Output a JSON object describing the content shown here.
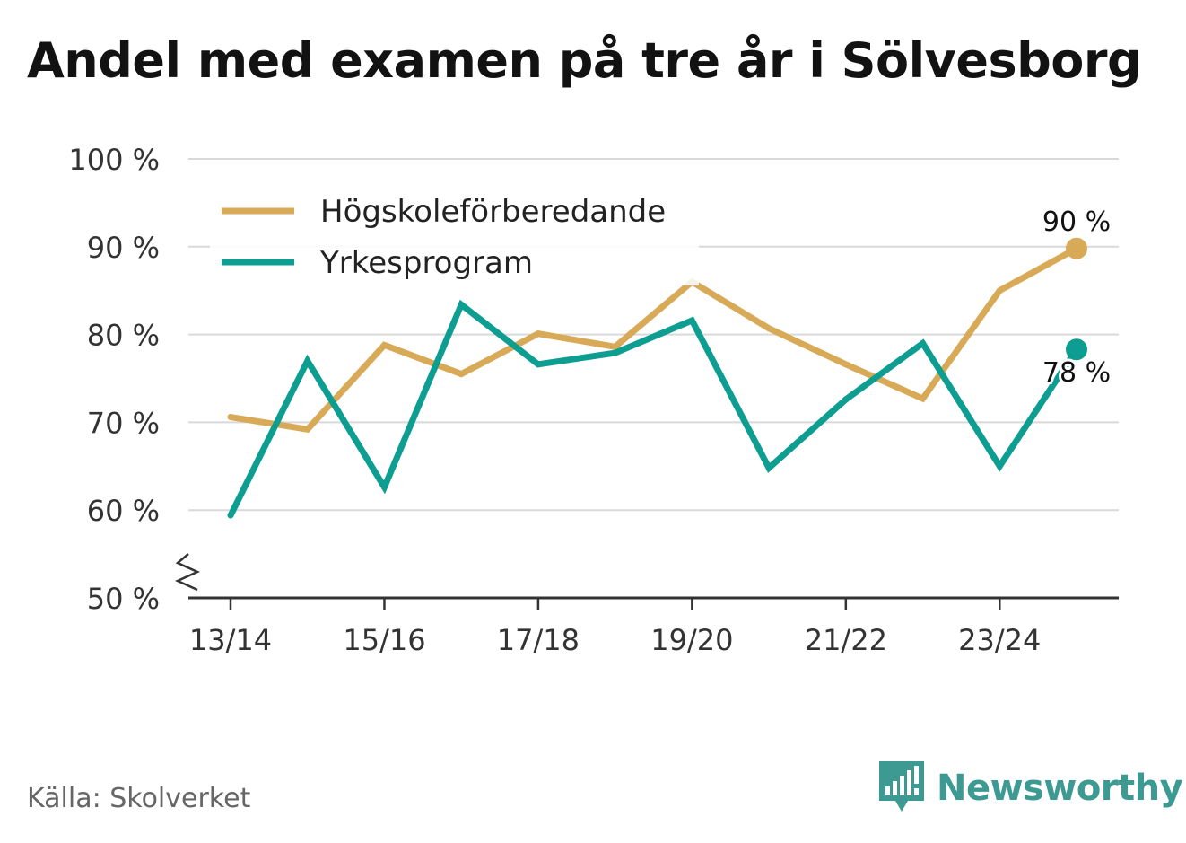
{
  "title": "Andel med examen på tre år i Sölvesborg",
  "source": "Källa: Skolverket",
  "brand": {
    "name": "Newsworthy",
    "icon": "newsworthy-logo-icon",
    "color": "#3d9a93"
  },
  "chart_data": {
    "type": "line",
    "x": [
      "13/14",
      "14/15",
      "15/16",
      "16/17",
      "17/18",
      "18/19",
      "19/20",
      "20/21",
      "21/22",
      "22/23",
      "23/24",
      "24/25"
    ],
    "x_tick_labels": [
      "13/14",
      "15/16",
      "17/18",
      "19/20",
      "21/22",
      "23/24"
    ],
    "y_tick_labels": [
      "50 %",
      "60 %",
      "70 %",
      "80 %",
      "90 %",
      "100 %"
    ],
    "ylim": [
      50,
      100
    ],
    "y_ticks": [
      50,
      60,
      70,
      80,
      90,
      100
    ],
    "y_axis_break": true,
    "grid": true,
    "legend_position": "top-left",
    "series": [
      {
        "name": "Högskoleförberedande",
        "color": "#d8aa58",
        "values": [
          70.6,
          69.2,
          78.8,
          75.5,
          80.1,
          78.6,
          86.0,
          80.7,
          76.6,
          72.7,
          85.0,
          89.8
        ],
        "end_label": "90 %"
      },
      {
        "name": "Yrkesprogram",
        "color": "#0e9e91",
        "values": [
          59.4,
          77.0,
          62.6,
          83.4,
          76.6,
          77.9,
          81.6,
          64.8,
          72.6,
          79.0,
          65.0,
          78.3
        ],
        "end_label": "78 %"
      }
    ]
  }
}
